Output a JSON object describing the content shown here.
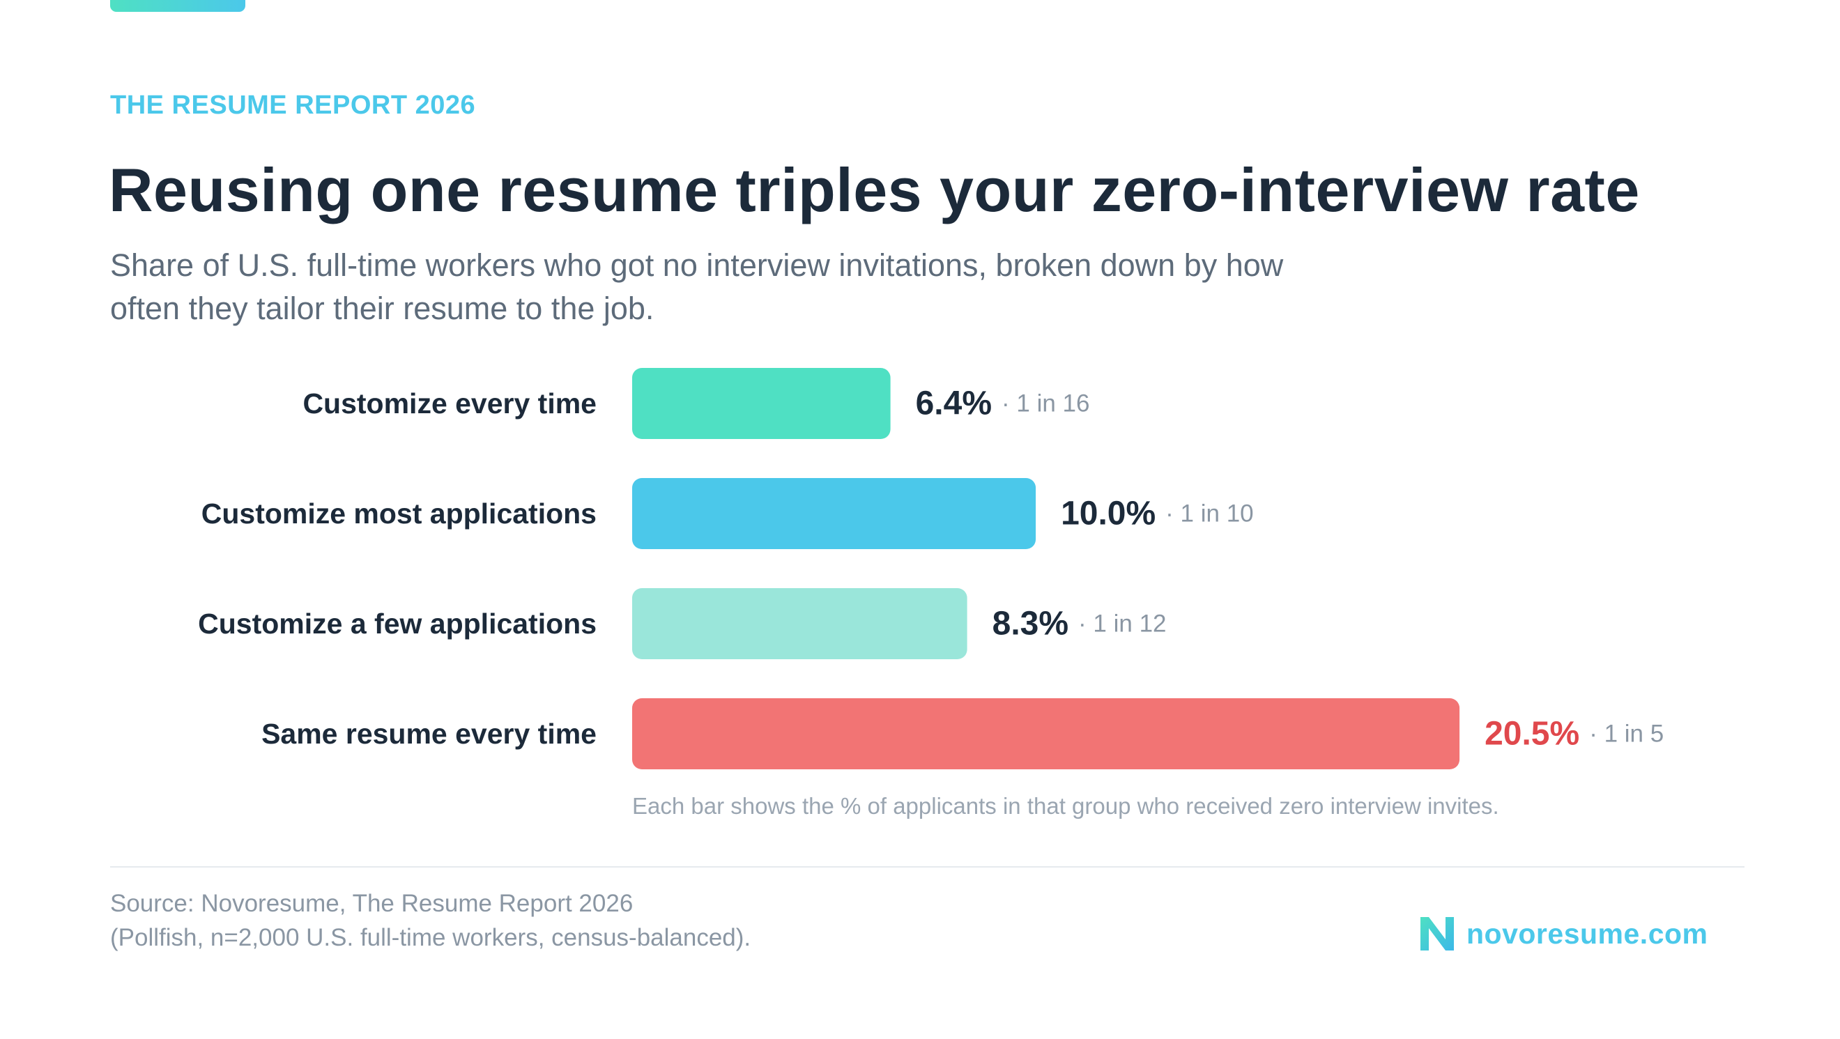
{
  "header": {
    "kicker": "THE RESUME REPORT 2026",
    "title": "Reusing one resume triples your zero-interview rate",
    "subtitle": "Share of U.S. full-time workers who got no interview invitations, broken down by how often they tailor their resume to the job."
  },
  "chart_data": {
    "type": "bar",
    "orientation": "horizontal",
    "categories": [
      "Customize every time",
      "Customize most applications",
      "Customize a few applications",
      "Same resume every time"
    ],
    "values": [
      6.4,
      10.0,
      8.3,
      20.5
    ],
    "value_labels": [
      "6.4%",
      "10.0%",
      "8.3%",
      "20.5%"
    ],
    "ratio_labels": [
      "· 1 in 16",
      "· 1 in 10",
      "· 1 in 12",
      "· 1 in 5"
    ],
    "colors": [
      "#4fe0c3",
      "#4bc8ea",
      "#9ae6da",
      "#f27474"
    ],
    "highlight_value_color": "#e0484c",
    "default_value_color": "#1c2a3a",
    "xlim": [
      0,
      21.5
    ],
    "grid": false
  },
  "note": "Each bar shows the % of applicants in that group who received zero interview invites.",
  "footer": {
    "source_line1": "Source: Novoresume, The Resume Report 2026",
    "source_line2": "(Pollfish, n=2,000 U.S. full-time workers, census-balanced).",
    "brand": "novoresume.com",
    "brand_icon": "novoresume-logo-icon"
  }
}
